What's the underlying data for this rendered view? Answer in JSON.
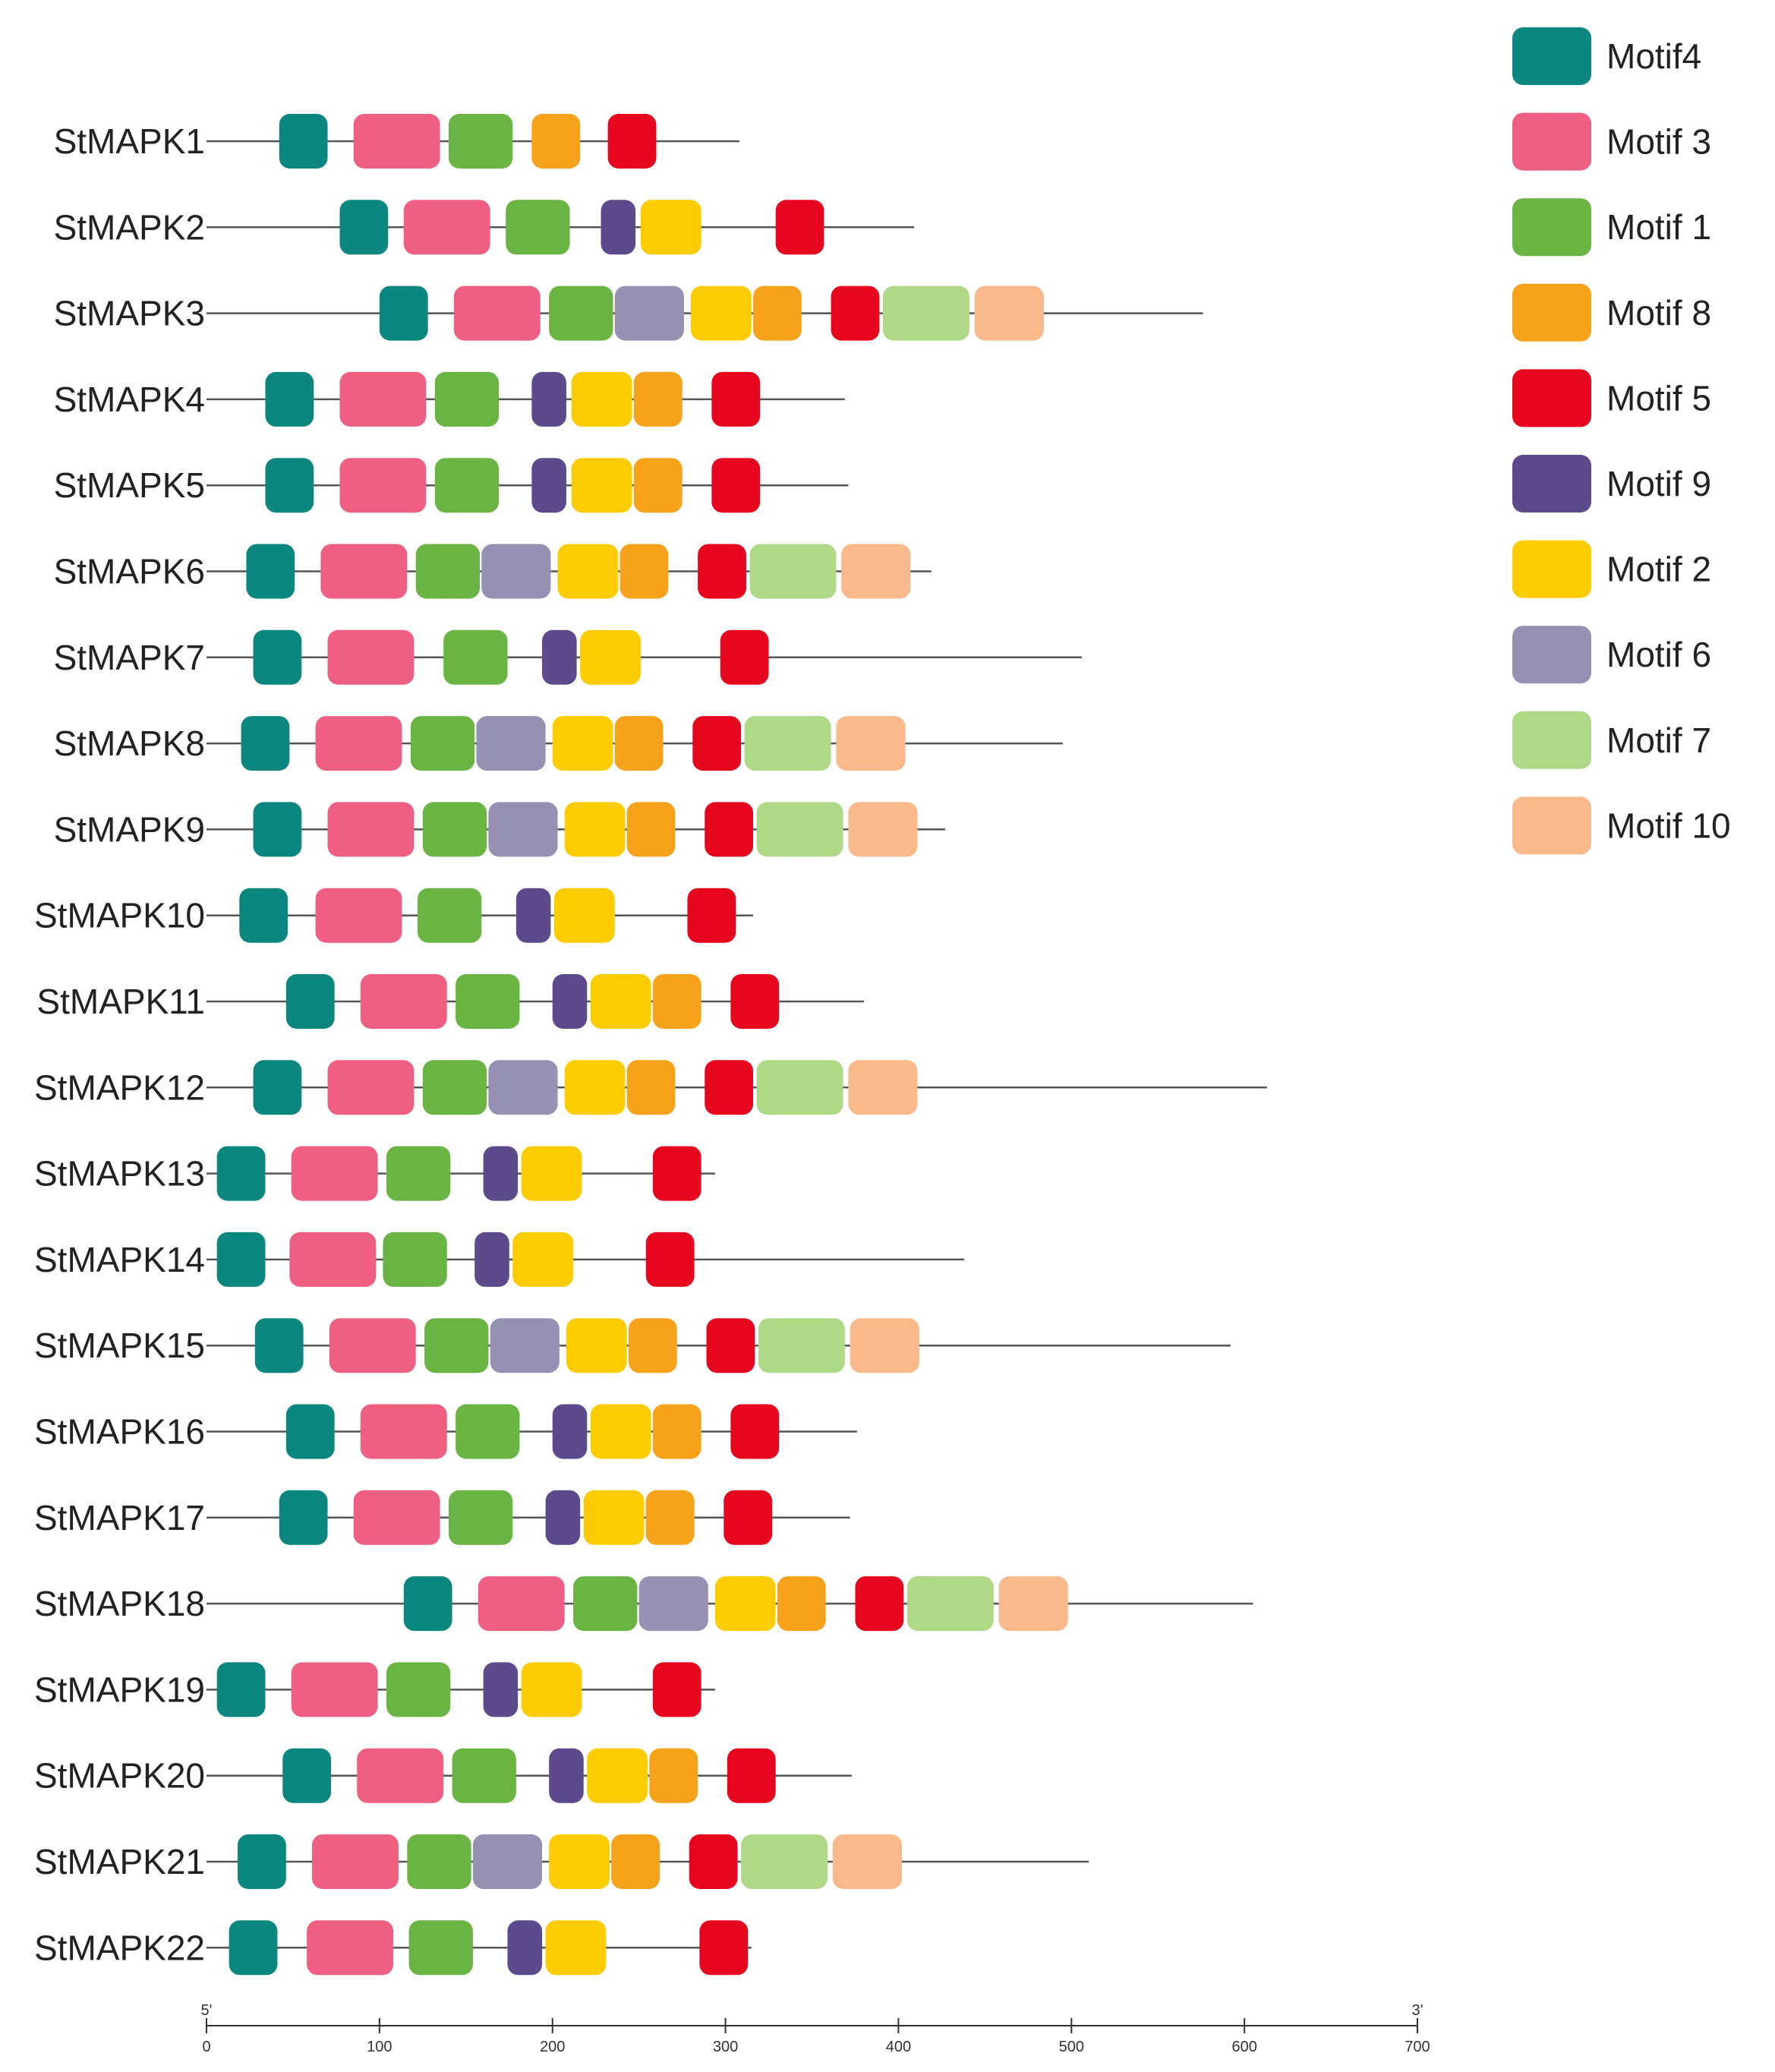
{
  "chart_data": {
    "type": "motif-diagram",
    "axis": {
      "start_label": "5'",
      "end_label": "3'",
      "ticks": [
        0,
        100,
        200,
        300,
        400,
        500,
        600,
        700
      ],
      "range": [
        0,
        700
      ]
    },
    "motifs": [
      {
        "id": "m4",
        "name": "Motif4",
        "color": "#0b8780"
      },
      {
        "id": "m3",
        "name": "Motif 3",
        "color": "#ee5f82"
      },
      {
        "id": "m1",
        "name": "Motif 1",
        "color": "#6ab444"
      },
      {
        "id": "m8",
        "name": "Motif 8",
        "color": "#f7a21b"
      },
      {
        "id": "m5",
        "name": "Motif 5",
        "color": "#e6071f"
      },
      {
        "id": "m9",
        "name": "Motif 9",
        "color": "#5c4a8c"
      },
      {
        "id": "m2",
        "name": "Motif 2",
        "color": "#fccb00"
      },
      {
        "id": "m6",
        "name": "Motif 6",
        "color": "#9591b3"
      },
      {
        "id": "m7",
        "name": "Motif 7",
        "color": "#afd887"
      },
      {
        "id": "m10",
        "name": "Motif 10",
        "color": "#f9b98a"
      }
    ],
    "genes": [
      {
        "name": "StMAPK1",
        "length": 308,
        "motifs": [
          [
            "m4",
            42
          ],
          [
            "m3",
            85
          ],
          [
            "m1",
            140
          ],
          [
            "m8",
            188
          ],
          [
            "m5",
            232
          ]
        ]
      },
      {
        "name": "StMAPK2",
        "length": 409,
        "motifs": [
          [
            "m4",
            77
          ],
          [
            "m3",
            114
          ],
          [
            "m1",
            173
          ],
          [
            "m9",
            228
          ],
          [
            "m2",
            251
          ],
          [
            "m5",
            329
          ]
        ]
      },
      {
        "name": "StMAPK3",
        "length": 576,
        "motifs": [
          [
            "m4",
            100
          ],
          [
            "m3",
            143
          ],
          [
            "m1",
            198
          ],
          [
            "m6",
            236
          ],
          [
            "m2",
            280
          ],
          [
            "m8",
            316
          ],
          [
            "m5",
            361
          ],
          [
            "m7",
            391
          ],
          [
            "m10",
            444
          ]
        ]
      },
      {
        "name": "StMAPK4",
        "length": 369,
        "motifs": [
          [
            "m4",
            34
          ],
          [
            "m3",
            77
          ],
          [
            "m1",
            132
          ],
          [
            "m9",
            188
          ],
          [
            "m2",
            211
          ],
          [
            "m8",
            247
          ],
          [
            "m5",
            292
          ]
        ]
      },
      {
        "name": "StMAPK5",
        "length": 371,
        "motifs": [
          [
            "m4",
            34
          ],
          [
            "m3",
            77
          ],
          [
            "m1",
            132
          ],
          [
            "m9",
            188
          ],
          [
            "m2",
            211
          ],
          [
            "m8",
            247
          ],
          [
            "m5",
            292
          ]
        ]
      },
      {
        "name": "StMAPK6",
        "length": 419,
        "motifs": [
          [
            "m4",
            23
          ],
          [
            "m3",
            66
          ],
          [
            "m1",
            121
          ],
          [
            "m6",
            159
          ],
          [
            "m2",
            203
          ],
          [
            "m8",
            239
          ],
          [
            "m5",
            284
          ],
          [
            "m7",
            314
          ],
          [
            "m10",
            367
          ]
        ]
      },
      {
        "name": "StMAPK7",
        "length": 506,
        "motifs": [
          [
            "m4",
            27
          ],
          [
            "m3",
            70
          ],
          [
            "m1",
            137
          ],
          [
            "m9",
            194
          ],
          [
            "m2",
            216
          ],
          [
            "m5",
            297
          ]
        ]
      },
      {
        "name": "StMAPK8",
        "length": 495,
        "motifs": [
          [
            "m4",
            20
          ],
          [
            "m3",
            63
          ],
          [
            "m1",
            118
          ],
          [
            "m6",
            156
          ],
          [
            "m2",
            200
          ],
          [
            "m8",
            236
          ],
          [
            "m5",
            281
          ],
          [
            "m7",
            311
          ],
          [
            "m10",
            364
          ]
        ]
      },
      {
        "name": "StMAPK9",
        "length": 427,
        "motifs": [
          [
            "m4",
            27
          ],
          [
            "m3",
            70
          ],
          [
            "m1",
            125
          ],
          [
            "m6",
            163
          ],
          [
            "m2",
            207
          ],
          [
            "m8",
            243
          ],
          [
            "m5",
            288
          ],
          [
            "m7",
            318
          ],
          [
            "m10",
            371
          ]
        ]
      },
      {
        "name": "StMAPK10",
        "length": 316,
        "motifs": [
          [
            "m4",
            19
          ],
          [
            "m3",
            63
          ],
          [
            "m1",
            122
          ],
          [
            "m9",
            179
          ],
          [
            "m2",
            201
          ],
          [
            "m5",
            278
          ]
        ]
      },
      {
        "name": "StMAPK11",
        "length": 380,
        "motifs": [
          [
            "m4",
            46
          ],
          [
            "m3",
            89
          ],
          [
            "m1",
            144
          ],
          [
            "m9",
            200
          ],
          [
            "m2",
            222
          ],
          [
            "m8",
            258
          ],
          [
            "m5",
            303
          ]
        ]
      },
      {
        "name": "StMAPK12",
        "length": 613,
        "motifs": [
          [
            "m4",
            27
          ],
          [
            "m3",
            70
          ],
          [
            "m1",
            125
          ],
          [
            "m6",
            163
          ],
          [
            "m2",
            207
          ],
          [
            "m8",
            243
          ],
          [
            "m5",
            288
          ],
          [
            "m7",
            318
          ],
          [
            "m10",
            371
          ]
        ]
      },
      {
        "name": "StMAPK13",
        "length": 294,
        "motifs": [
          [
            "m4",
            6
          ],
          [
            "m3",
            49
          ],
          [
            "m1",
            104
          ],
          [
            "m9",
            160
          ],
          [
            "m2",
            182
          ],
          [
            "m5",
            258
          ]
        ]
      },
      {
        "name": "StMAPK14",
        "length": 438,
        "motifs": [
          [
            "m4",
            6
          ],
          [
            "m3",
            48
          ],
          [
            "m1",
            102
          ],
          [
            "m9",
            155
          ],
          [
            "m2",
            177
          ],
          [
            "m5",
            254
          ]
        ]
      },
      {
        "name": "StMAPK15",
        "length": 592,
        "motifs": [
          [
            "m4",
            28
          ],
          [
            "m3",
            71
          ],
          [
            "m1",
            126
          ],
          [
            "m6",
            164
          ],
          [
            "m2",
            208
          ],
          [
            "m8",
            244
          ],
          [
            "m5",
            289
          ],
          [
            "m7",
            319
          ],
          [
            "m10",
            372
          ]
        ]
      },
      {
        "name": "StMAPK16",
        "length": 376,
        "motifs": [
          [
            "m4",
            46
          ],
          [
            "m3",
            89
          ],
          [
            "m1",
            144
          ],
          [
            "m9",
            200
          ],
          [
            "m2",
            222
          ],
          [
            "m8",
            258
          ],
          [
            "m5",
            303
          ]
        ]
      },
      {
        "name": "StMAPK17",
        "length": 372,
        "motifs": [
          [
            "m4",
            42
          ],
          [
            "m3",
            85
          ],
          [
            "m1",
            140
          ],
          [
            "m9",
            196
          ],
          [
            "m2",
            218
          ],
          [
            "m8",
            254
          ],
          [
            "m5",
            299
          ]
        ]
      },
      {
        "name": "StMAPK18",
        "length": 605,
        "motifs": [
          [
            "m4",
            114
          ],
          [
            "m3",
            157
          ],
          [
            "m1",
            212
          ],
          [
            "m6",
            250
          ],
          [
            "m2",
            294
          ],
          [
            "m8",
            330
          ],
          [
            "m5",
            375
          ],
          [
            "m7",
            405
          ],
          [
            "m10",
            458
          ]
        ]
      },
      {
        "name": "StMAPK19",
        "length": 294,
        "motifs": [
          [
            "m4",
            6
          ],
          [
            "m3",
            49
          ],
          [
            "m1",
            104
          ],
          [
            "m9",
            160
          ],
          [
            "m2",
            182
          ],
          [
            "m5",
            258
          ]
        ]
      },
      {
        "name": "StMAPK20",
        "length": 373,
        "motifs": [
          [
            "m4",
            44
          ],
          [
            "m3",
            87
          ],
          [
            "m1",
            142
          ],
          [
            "m9",
            198
          ],
          [
            "m2",
            220
          ],
          [
            "m8",
            256
          ],
          [
            "m5",
            301
          ]
        ]
      },
      {
        "name": "StMAPK21",
        "length": 510,
        "motifs": [
          [
            "m4",
            18
          ],
          [
            "m3",
            61
          ],
          [
            "m1",
            116
          ],
          [
            "m6",
            154
          ],
          [
            "m2",
            198
          ],
          [
            "m8",
            234
          ],
          [
            "m5",
            279
          ],
          [
            "m7",
            309
          ],
          [
            "m10",
            362
          ]
        ]
      },
      {
        "name": "StMAPK22",
        "length": 315,
        "motifs": [
          [
            "m4",
            13
          ],
          [
            "m3",
            58
          ],
          [
            "m1",
            117
          ],
          [
            "m9",
            174
          ],
          [
            "m2",
            196
          ],
          [
            "m5",
            285
          ]
        ]
      }
    ]
  }
}
